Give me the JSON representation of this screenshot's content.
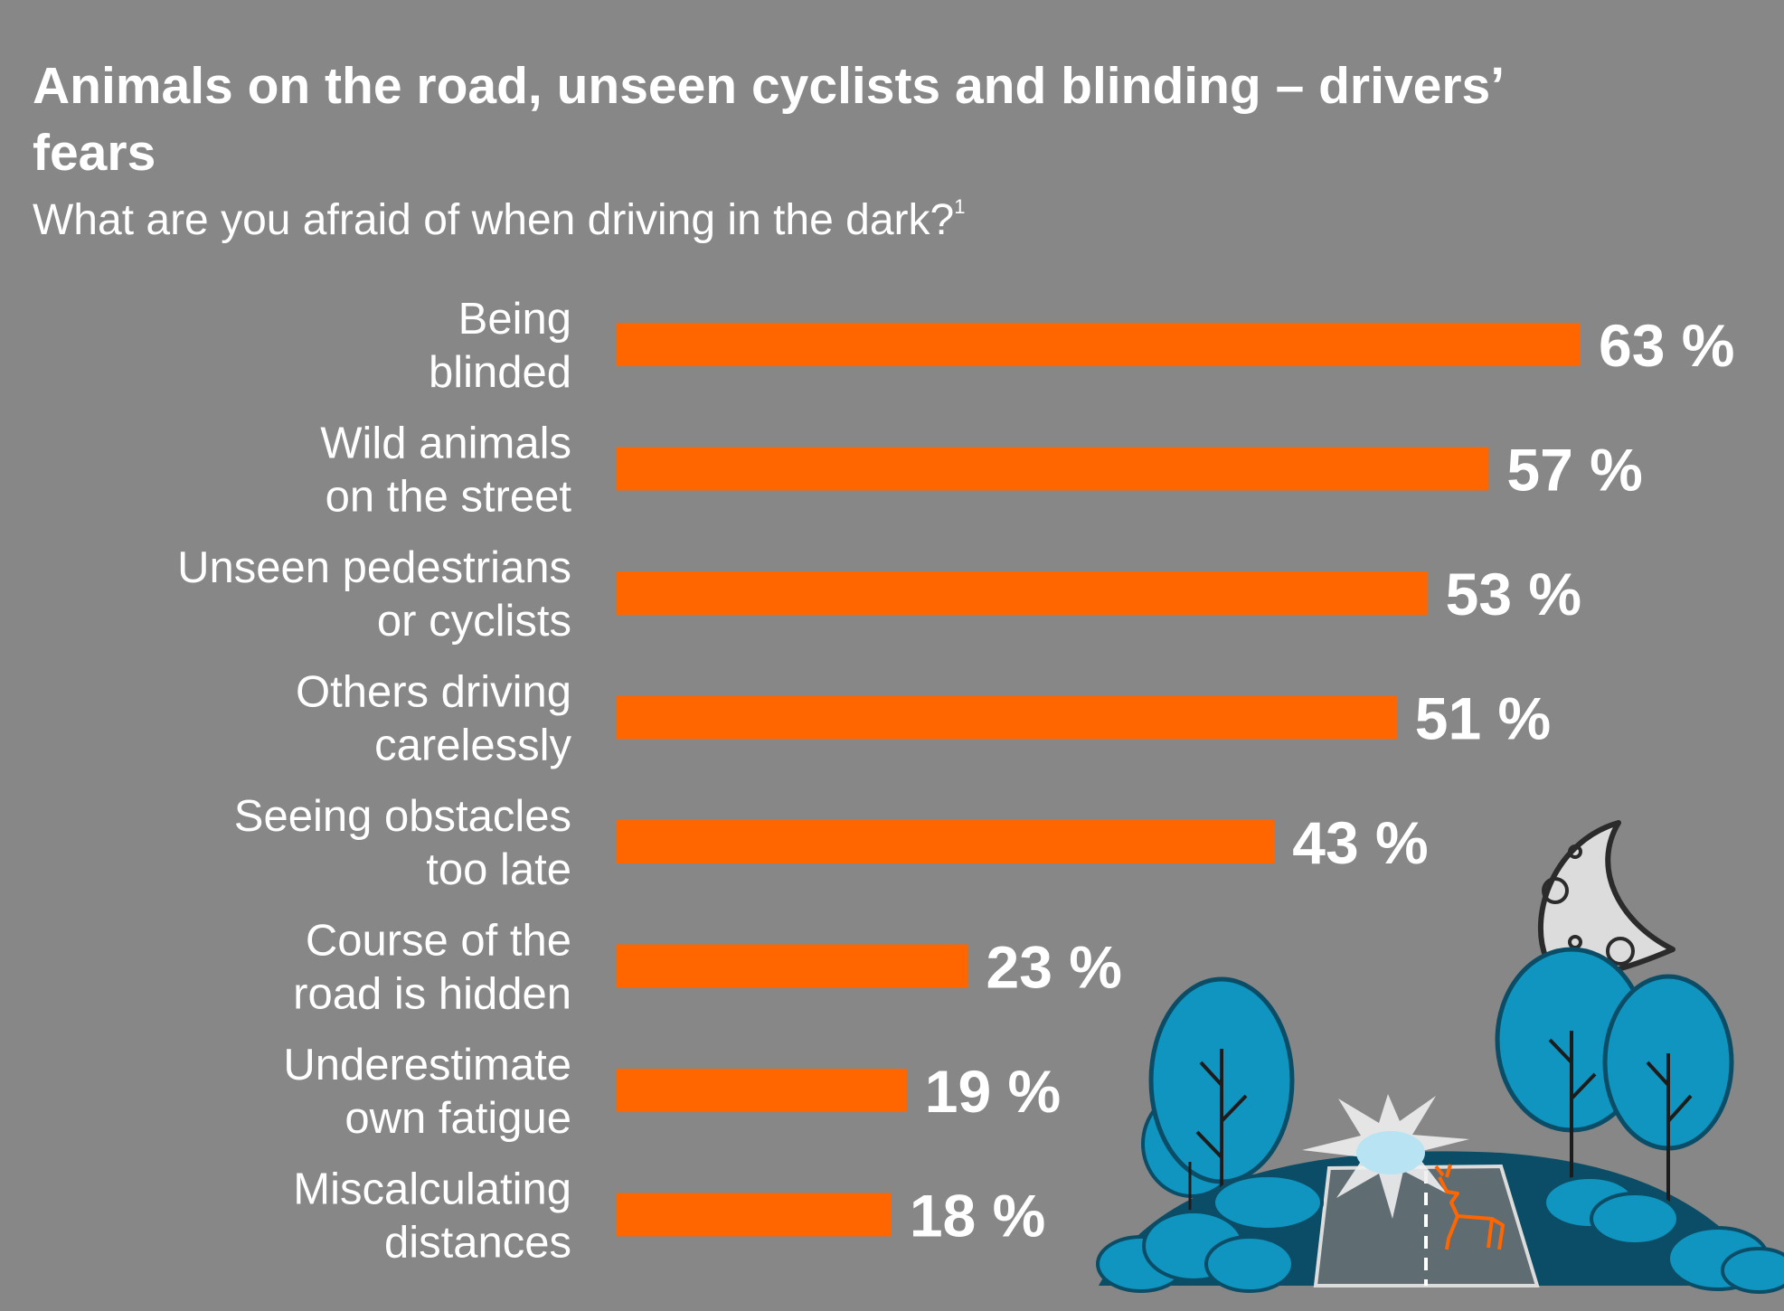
{
  "title": "Animals on the road, unseen cyclists and blinding – drivers’ fears",
  "subtitle": "What are you afraid of when driving in the dark?",
  "subtitle_footnote": "1",
  "colors": {
    "background": "#878787",
    "bar": "#ff6600",
    "text": "#ffffff",
    "tree": "#0f95bf",
    "hill": "#0b4d66"
  },
  "illustration": {
    "icons": [
      "moon-icon",
      "tree-icon",
      "deer-icon",
      "headlight-glare-icon",
      "road-icon"
    ]
  },
  "chart_data": {
    "type": "bar",
    "orientation": "horizontal",
    "title": "Animals on the road, unseen cyclists and blinding – drivers’ fears",
    "subtitle": "What are you afraid of when driving in the dark?",
    "categories": [
      [
        "Being",
        "blinded"
      ],
      [
        "Wild animals",
        "on the street"
      ],
      [
        "Unseen pedestrians",
        "or cyclists"
      ],
      [
        "Others driving",
        "carelessly"
      ],
      [
        "Seeing obstacles",
        "too late"
      ],
      [
        "Course of the",
        "road is hidden"
      ],
      [
        "Underestimate",
        "own fatigue"
      ],
      [
        "Miscalculating",
        "distances"
      ]
    ],
    "values": [
      63,
      57,
      53,
      51,
      43,
      23,
      19,
      18
    ],
    "value_labels": [
      "63 %",
      "57 %",
      "53 %",
      "51 %",
      "43 %",
      "23 %",
      "19 %",
      "18 %"
    ],
    "unit": "%",
    "xlim": [
      0,
      63
    ],
    "grid": false,
    "legend": "none"
  }
}
